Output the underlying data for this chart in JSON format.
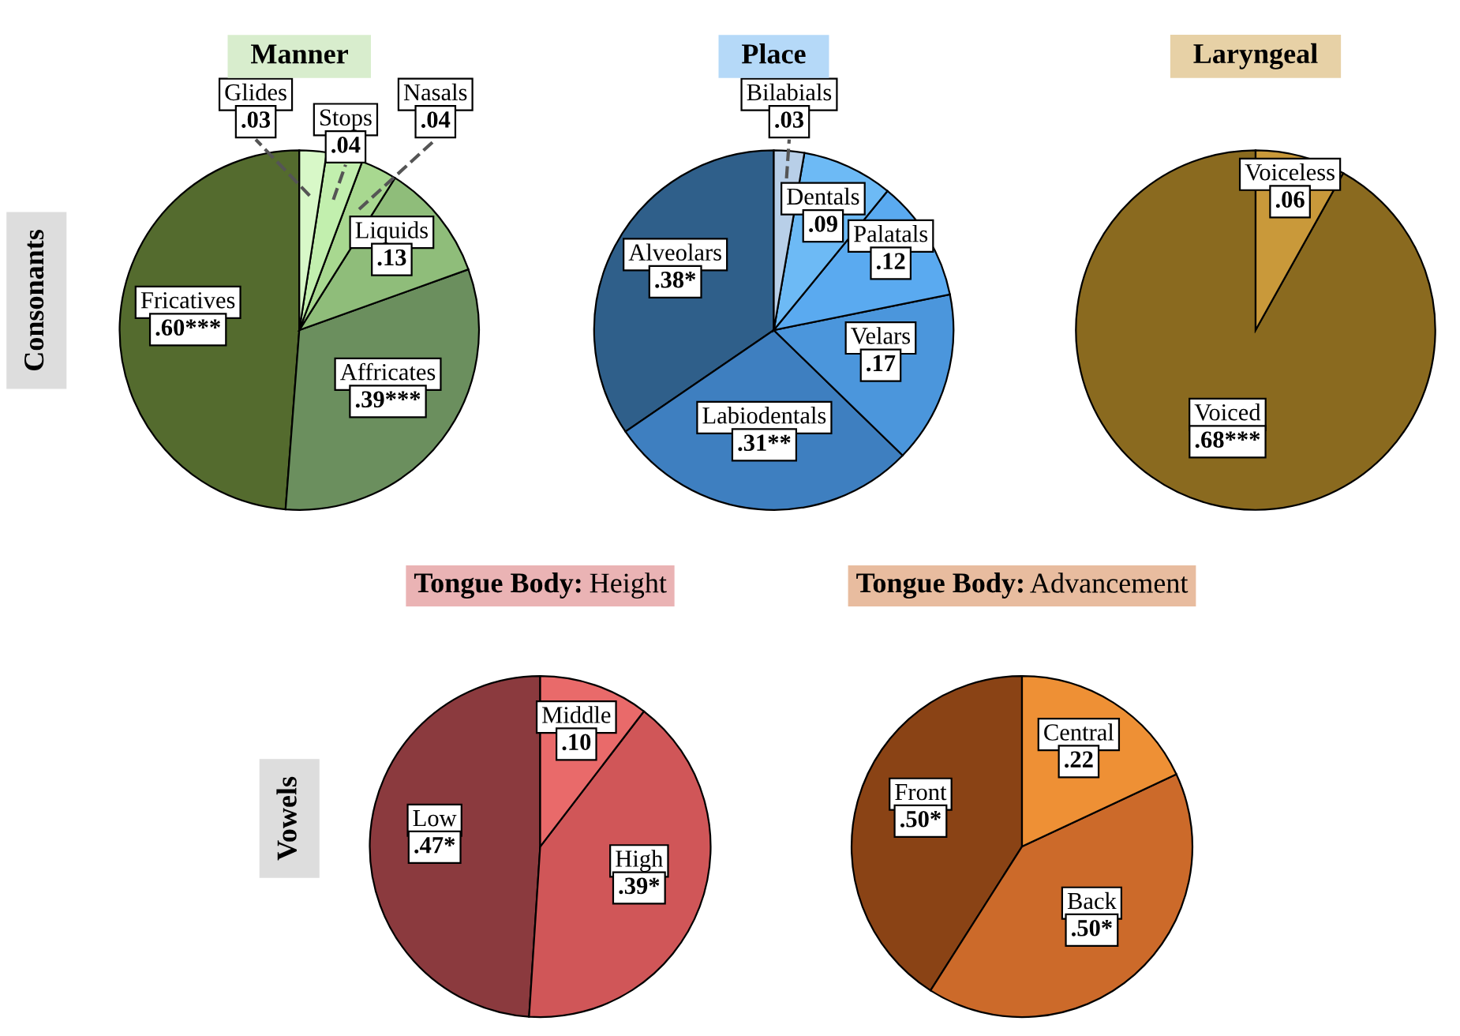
{
  "chart_data": [
    {
      "type": "pie",
      "title": "Manner",
      "ylabel": "Consonants",
      "categories": [
        "Fricatives",
        "Affricates",
        "Liquids",
        "Nasals",
        "Stops",
        "Glides"
      ],
      "values": [
        0.6,
        0.39,
        0.13,
        0.04,
        0.04,
        0.03
      ],
      "value_labels": [
        ".60***",
        ".39***",
        ".13",
        ".04",
        ".04",
        ".03"
      ],
      "colors": [
        "#546b2e",
        "#6b8f5e",
        "#8fbd7a",
        "#a8d890",
        "#c2efae",
        "#d8f8c8"
      ]
    },
    {
      "type": "pie",
      "title": "Place",
      "categories": [
        "Alveolars",
        "Labiodentals",
        "Velars",
        "Palatals",
        "Dentals",
        "Bilabials"
      ],
      "values": [
        0.38,
        0.31,
        0.17,
        0.12,
        0.09,
        0.03
      ],
      "value_labels": [
        ".38*",
        ".31**",
        ".17",
        ".12",
        ".09",
        ".03"
      ],
      "colors": [
        "#2f5f8a",
        "#3e7fc0",
        "#4b96dc",
        "#5aaaf0",
        "#6dbaf5",
        "#b8cfe8"
      ]
    },
    {
      "type": "pie",
      "title": "Laryngeal",
      "categories": [
        "Voiced",
        "Voiceless"
      ],
      "values": [
        0.68,
        0.06
      ],
      "value_labels": [
        ".68***",
        ".06"
      ],
      "colors": [
        "#8a6a1f",
        "#c9993a"
      ]
    },
    {
      "type": "pie",
      "title": "Tongue Body: Height",
      "ylabel": "Vowels",
      "categories": [
        "Low",
        "High",
        "Middle"
      ],
      "values": [
        0.47,
        0.39,
        0.1
      ],
      "value_labels": [
        ".47*",
        ".39*",
        ".10"
      ],
      "colors": [
        "#8b3a3e",
        "#d05658",
        "#e96a6a"
      ]
    },
    {
      "type": "pie",
      "title": "Tongue Body: Advancement",
      "categories": [
        "Front",
        "Back",
        "Central"
      ],
      "values": [
        0.5,
        0.5,
        0.22
      ],
      "value_labels": [
        ".50*",
        ".50*",
        ".22"
      ],
      "colors": [
        "#8a4315",
        "#cc6a2a",
        "#ee9035"
      ]
    }
  ]
}
